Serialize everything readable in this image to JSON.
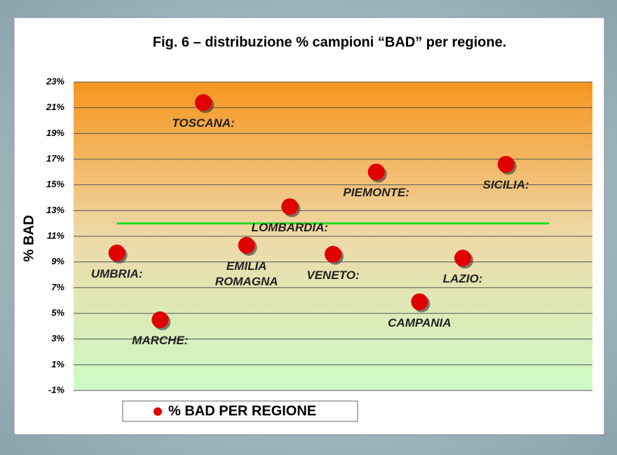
{
  "chart_data": {
    "type": "scatter",
    "title": "Fig. 6 – distribuzione % campioni “BAD” per regione.",
    "y_label": "% BAD",
    "x": [
      1,
      2,
      3,
      4,
      5,
      6,
      7,
      8,
      9,
      10
    ],
    "xlim": [
      0,
      12
    ],
    "point_labels": [
      "UMBRIA:",
      "MARCHE:",
      "TOSCANA:",
      "EMILIA\nROMAGNA",
      "LOMBARDIA:",
      "VENETO:",
      "PIEMONTE:",
      "CAMPANIA",
      "LAZIO:",
      "SICILIA:"
    ],
    "series": [
      {
        "name": "% BAD PER REGIONE",
        "color": "#e00000",
        "values": [
          9.7,
          4.5,
          21.4,
          10.3,
          13.3,
          9.6,
          16.0,
          5.9,
          9.3,
          16.6
        ]
      }
    ],
    "reference_line": {
      "value": 12,
      "x": [
        1,
        11
      ],
      "color": "#22dd22"
    },
    "ylim": [
      -1,
      23
    ],
    "yticks": [
      {
        "value": -1,
        "label": "-1%"
      },
      {
        "value": 1,
        "label": "1%"
      },
      {
        "value": 3,
        "label": "3%"
      },
      {
        "value": 5,
        "label": "5%"
      },
      {
        "value": 7,
        "label": "7%"
      },
      {
        "value": 9,
        "label": "9%"
      },
      {
        "value": 11,
        "label": "11%"
      },
      {
        "value": 13,
        "label": "13%"
      },
      {
        "value": 15,
        "label": "15%"
      },
      {
        "value": 17,
        "label": "17%"
      },
      {
        "value": 19,
        "label": "19%"
      },
      {
        "value": 21,
        "label": "21%"
      },
      {
        "value": 23,
        "label": "23%"
      }
    ],
    "grid": true
  }
}
